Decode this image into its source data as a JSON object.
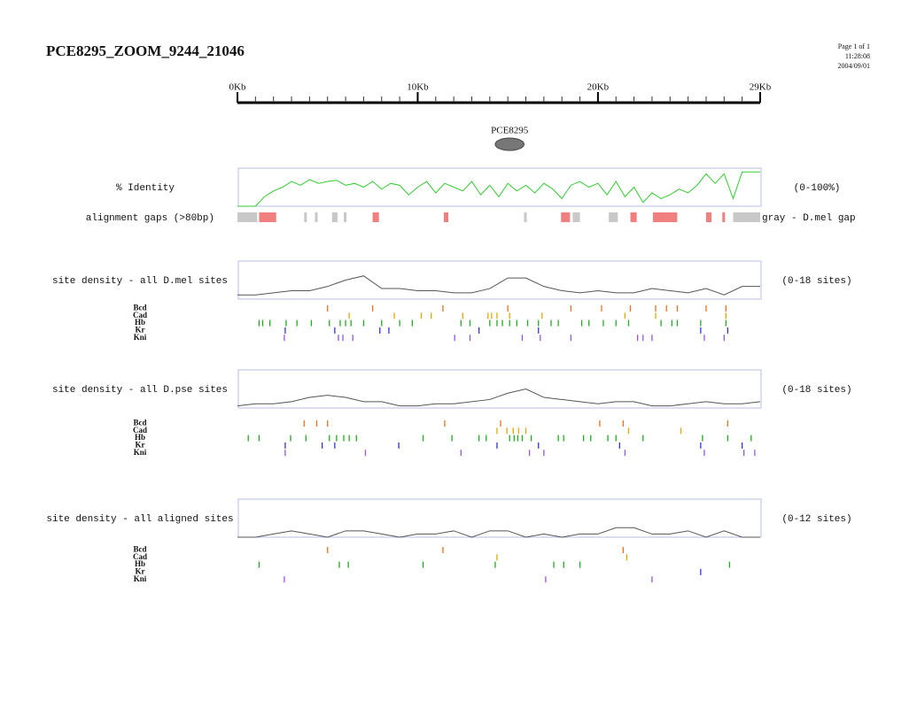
{
  "header": {
    "title": "PCE8295_ZOOM_9244_21046",
    "page": "Page 1 of 1",
    "time": "11:28:08",
    "date": "2004/09/01"
  },
  "scale": {
    "min": 0,
    "max": 29,
    "ticks": [
      {
        "value": 0,
        "label": "0Kb"
      },
      {
        "value": 10,
        "label": "10Kb"
      },
      {
        "value": 20,
        "label": "20Kb"
      },
      {
        "value": 29,
        "label": "29Kb"
      }
    ],
    "minor_ticks": [
      0,
      1,
      2,
      3,
      4,
      5,
      6,
      7,
      8,
      9,
      10,
      11,
      12,
      13,
      14,
      15,
      16,
      17,
      18,
      19,
      20,
      21,
      22,
      23,
      24,
      25,
      26,
      27,
      28,
      29
    ]
  },
  "feature": {
    "label": "PCE8295",
    "start": 14.3,
    "end": 15.9
  },
  "identity": {
    "label": "% Identity",
    "range_label": "(0-100%)",
    "ylim": [
      0,
      100
    ],
    "color": "#33cc33",
    "x": [
      0,
      0.5,
      1,
      1.5,
      2,
      2.5,
      3,
      3.5,
      4,
      4.5,
      5,
      5.5,
      6,
      6.5,
      7,
      7.5,
      8,
      8.5,
      9,
      9.5,
      10,
      10.5,
      11,
      11.5,
      12,
      12.5,
      13,
      13.5,
      14,
      14.5,
      15,
      15.5,
      16,
      16.5,
      17,
      17.5,
      18,
      18.5,
      19,
      19.5,
      20,
      20.5,
      21,
      21.5,
      22,
      22.5,
      23,
      23.5,
      24,
      24.5,
      25,
      25.5,
      26,
      26.5,
      27,
      27.5,
      28,
      28.5,
      29
    ],
    "values": [
      0,
      0,
      0,
      25,
      40,
      50,
      65,
      55,
      70,
      60,
      65,
      68,
      55,
      60,
      50,
      65,
      45,
      60,
      55,
      30,
      50,
      65,
      35,
      60,
      50,
      40,
      65,
      30,
      55,
      25,
      60,
      40,
      55,
      35,
      60,
      45,
      20,
      55,
      65,
      50,
      60,
      30,
      65,
      25,
      50,
      10,
      35,
      20,
      30,
      45,
      35,
      55,
      85,
      60,
      85,
      20,
      90,
      90,
      90
    ]
  },
  "gaps": {
    "label": "alignment gaps (>80bp)",
    "legend": "gray - D.mel gap",
    "gray_color": "#c8c8c8",
    "red_color": "#f08080",
    "gray": [
      [
        0,
        1.1
      ],
      [
        3.7,
        3.85
      ],
      [
        4.3,
        4.45
      ],
      [
        5.25,
        5.55
      ],
      [
        5.9,
        6.05
      ],
      [
        15.9,
        16.05
      ],
      [
        18.6,
        19.0
      ],
      [
        20.6,
        21.1
      ],
      [
        27.5,
        29
      ]
    ],
    "red": [
      [
        1.2,
        2.15
      ],
      [
        7.5,
        7.85
      ],
      [
        11.45,
        11.7
      ],
      [
        17.95,
        18.45
      ],
      [
        21.8,
        22.15
      ],
      [
        23.05,
        24.4
      ],
      [
        26.0,
        26.3
      ],
      [
        26.9,
        27.05
      ]
    ]
  },
  "panels": [
    {
      "label": "site density - all D.mel sites",
      "range_label": "(0-18 sites)",
      "ylim": [
        0,
        18
      ],
      "color": "#555555",
      "x": [
        0,
        1,
        2,
        3,
        4,
        5,
        6,
        7,
        8,
        9,
        10,
        11,
        12,
        13,
        14,
        15,
        16,
        17,
        18,
        19,
        20,
        21,
        22,
        23,
        24,
        25,
        26,
        27,
        28,
        29
      ],
      "values": [
        2,
        2,
        3,
        4,
        4,
        6,
        9,
        11,
        5,
        5,
        4,
        4,
        3,
        3,
        5,
        10,
        10,
        6,
        4,
        3,
        4,
        3,
        3,
        5,
        4,
        3,
        5,
        2,
        6,
        6
      ],
      "tracks": [
        {
          "name": "Bcd",
          "color": "#f07020",
          "positions": [
            5.0,
            7.5,
            11.4,
            15.0,
            18.5,
            20.2,
            21.8,
            23.2,
            23.8,
            24.4,
            26.0,
            27.1
          ]
        },
        {
          "name": "Cad",
          "color": "#e0a800",
          "positions": [
            6.2,
            8.7,
            10.2,
            10.75,
            12.5,
            13.9,
            14.1,
            14.4,
            15.1,
            16.9,
            21.5,
            23.2,
            27.1
          ]
        },
        {
          "name": "Hb",
          "color": "#22aa22",
          "positions": [
            1.2,
            1.4,
            1.8,
            2.7,
            3.3,
            4.1,
            5.1,
            5.7,
            6.0,
            6.3,
            7.0,
            8.0,
            9.0,
            9.7,
            12.4,
            12.9,
            14.0,
            14.4,
            14.7,
            15.1,
            15.5,
            16.1,
            16.7,
            17.4,
            17.8,
            19.1,
            19.5,
            20.3,
            21.0,
            21.7,
            23.5,
            24.1,
            24.4,
            25.7,
            27.1
          ]
        },
        {
          "name": "Kr",
          "color": "#3333dd",
          "positions": [
            2.65,
            5.4,
            7.9,
            8.4,
            13.4,
            16.7,
            25.7,
            27.2
          ]
        },
        {
          "name": "Kni",
          "color": "#9955dd",
          "positions": [
            2.6,
            5.6,
            5.85,
            6.4,
            12.05,
            12.9,
            15.8,
            16.8,
            18.5,
            22.2,
            22.5,
            23.0,
            25.9,
            27.0
          ]
        }
      ]
    },
    {
      "label": "site density - all D.pse sites",
      "range_label": "(0-18 sites)",
      "ylim": [
        0,
        18
      ],
      "color": "#555555",
      "x": [
        0,
        1,
        2,
        3,
        4,
        5,
        6,
        7,
        8,
        9,
        10,
        11,
        12,
        13,
        14,
        15,
        16,
        17,
        18,
        19,
        20,
        21,
        22,
        23,
        24,
        25,
        26,
        27,
        28,
        29
      ],
      "values": [
        1,
        2,
        2,
        3,
        5,
        6,
        5,
        3,
        3,
        1,
        1,
        2,
        2,
        3,
        4,
        7,
        9,
        5,
        4,
        3,
        2,
        3,
        3,
        1,
        1,
        2,
        3,
        2,
        2,
        3
      ],
      "tracks": [
        {
          "name": "Bcd",
          "color": "#f07020",
          "positions": [
            3.7,
            4.4,
            5.0,
            11.5,
            14.6,
            20.1,
            21.4,
            27.2
          ]
        },
        {
          "name": "Cad",
          "color": "#e0a800",
          "positions": [
            14.4,
            14.95,
            15.3,
            15.6,
            16.0,
            21.7,
            24.6
          ]
        },
        {
          "name": "Hb",
          "color": "#22aa22",
          "positions": [
            0.6,
            1.2,
            2.95,
            3.8,
            5.1,
            5.5,
            5.9,
            6.2,
            6.6,
            10.3,
            11.9,
            13.4,
            13.8,
            15.1,
            15.35,
            15.55,
            15.8,
            16.3,
            17.8,
            18.1,
            19.2,
            19.6,
            20.55,
            21.0,
            22.5,
            25.8,
            27.2,
            28.5
          ]
        },
        {
          "name": "Kr",
          "color": "#3333dd",
          "positions": [
            2.65,
            4.7,
            5.4,
            8.95,
            14.4,
            16.7,
            21.2,
            25.7,
            28.0
          ]
        },
        {
          "name": "Kni",
          "color": "#9955dd",
          "positions": [
            2.65,
            7.1,
            12.4,
            16.2,
            17.0,
            21.5,
            25.9,
            28.1,
            28.7
          ]
        }
      ]
    },
    {
      "label": "site density - all aligned sites",
      "range_label": "(0-12 sites)",
      "ylim": [
        0,
        12
      ],
      "color": "#555555",
      "x": [
        0,
        1,
        2,
        3,
        4,
        5,
        6,
        7,
        8,
        9,
        10,
        11,
        12,
        13,
        14,
        15,
        16,
        17,
        18,
        19,
        20,
        21,
        22,
        23,
        24,
        25,
        26,
        27,
        28,
        29
      ],
      "values": [
        0,
        0,
        1,
        2,
        1,
        0,
        2,
        2,
        1,
        0,
        1,
        1,
        2,
        0,
        2,
        2,
        0,
        1,
        0,
        1,
        1,
        3,
        3,
        1,
        1,
        2,
        0,
        2,
        0,
        0
      ],
      "tracks": [
        {
          "name": "Bcd",
          "color": "#f07020",
          "positions": [
            5.0,
            11.4,
            21.4
          ]
        },
        {
          "name": "Cad",
          "color": "#e0a800",
          "positions": [
            14.4,
            21.6
          ]
        },
        {
          "name": "Hb",
          "color": "#22aa22",
          "positions": [
            1.2,
            5.65,
            6.15,
            10.3,
            14.3,
            17.55,
            18.1,
            19.0,
            27.3
          ]
        },
        {
          "name": "Kr",
          "color": "#3333dd",
          "positions": [
            25.7
          ]
        },
        {
          "name": "Kni",
          "color": "#9955dd",
          "positions": [
            2.6,
            17.1,
            23.0
          ]
        }
      ]
    }
  ]
}
